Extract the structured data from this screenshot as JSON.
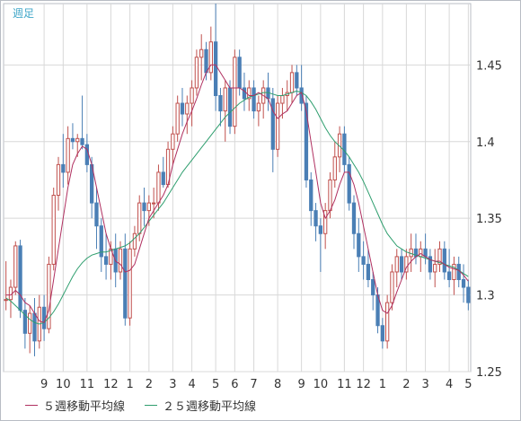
{
  "period_label": "週足",
  "legend": {
    "ma5": "５週移動平均線",
    "ma25": "２５週移動平均線"
  },
  "colors": {
    "up": "#c0504d",
    "down": "#4a7fb5",
    "ma5": "#b03060",
    "ma25": "#2e9e6e",
    "grid": "#d8d8d8",
    "border": "#b8bcc4"
  },
  "chart_data": {
    "type": "candlestick",
    "ylim": [
      1.25,
      1.49
    ],
    "y_ticks": [
      1.25,
      1.3,
      1.35,
      1.4,
      1.45
    ],
    "x_ticks": [
      {
        "i": 8,
        "label": "9"
      },
      {
        "i": 12,
        "label": "10"
      },
      {
        "i": 17,
        "label": "11"
      },
      {
        "i": 22,
        "label": "12"
      },
      {
        "i": 26,
        "label": "1"
      },
      {
        "i": 30,
        "label": "2"
      },
      {
        "i": 35,
        "label": "3"
      },
      {
        "i": 39,
        "label": "4"
      },
      {
        "i": 44,
        "label": "5"
      },
      {
        "i": 48,
        "label": "6"
      },
      {
        "i": 52,
        "label": "7"
      },
      {
        "i": 57,
        "label": "8"
      },
      {
        "i": 62,
        "label": "9"
      },
      {
        "i": 66,
        "label": "10"
      },
      {
        "i": 71,
        "label": "11"
      },
      {
        "i": 75,
        "label": "12"
      },
      {
        "i": 79,
        "label": "1"
      },
      {
        "i": 84,
        "label": "2"
      },
      {
        "i": 88,
        "label": "3"
      },
      {
        "i": 93,
        "label": "4"
      },
      {
        "i": 97,
        "label": "5"
      }
    ],
    "candles": [
      [
        1.297,
        1.322,
        1.29,
        1.297
      ],
      [
        1.297,
        1.31,
        1.285,
        1.305
      ],
      [
        1.305,
        1.335,
        1.3,
        1.332
      ],
      [
        1.332,
        1.336,
        1.285,
        1.29
      ],
      [
        1.29,
        1.298,
        1.265,
        1.275
      ],
      [
        1.275,
        1.293,
        1.262,
        1.288
      ],
      [
        1.288,
        1.298,
        1.26,
        1.27
      ],
      [
        1.27,
        1.3,
        1.265,
        1.292
      ],
      [
        1.292,
        1.3,
        1.27,
        1.278
      ],
      [
        1.278,
        1.325,
        1.275,
        1.32
      ],
      [
        1.32,
        1.37,
        1.316,
        1.365
      ],
      [
        1.365,
        1.39,
        1.355,
        1.385
      ],
      [
        1.385,
        1.405,
        1.37,
        1.38
      ],
      [
        1.38,
        1.41,
        1.372,
        1.402
      ],
      [
        1.402,
        1.412,
        1.395,
        1.4
      ],
      [
        1.4,
        1.405,
        1.39,
        1.402
      ],
      [
        1.402,
        1.43,
        1.395,
        1.398
      ],
      [
        1.398,
        1.405,
        1.38,
        1.385
      ],
      [
        1.385,
        1.39,
        1.35,
        1.36
      ],
      [
        1.36,
        1.37,
        1.33,
        1.345
      ],
      [
        1.345,
        1.35,
        1.315,
        1.325
      ],
      [
        1.325,
        1.34,
        1.31,
        1.32
      ],
      [
        1.32,
        1.335,
        1.31,
        1.33
      ],
      [
        1.33,
        1.34,
        1.305,
        1.315
      ],
      [
        1.315,
        1.335,
        1.31,
        1.33
      ],
      [
        1.33,
        1.34,
        1.28,
        1.285
      ],
      [
        1.285,
        1.335,
        1.28,
        1.33
      ],
      [
        1.33,
        1.345,
        1.325,
        1.34
      ],
      [
        1.34,
        1.365,
        1.335,
        1.36
      ],
      [
        1.36,
        1.37,
        1.345,
        1.355
      ],
      [
        1.355,
        1.365,
        1.345,
        1.36
      ],
      [
        1.36,
        1.37,
        1.35,
        1.36
      ],
      [
        1.36,
        1.385,
        1.355,
        1.38
      ],
      [
        1.38,
        1.39,
        1.37,
        1.372
      ],
      [
        1.372,
        1.4,
        1.37,
        1.395
      ],
      [
        1.395,
        1.41,
        1.385,
        1.405
      ],
      [
        1.405,
        1.43,
        1.4,
        1.425
      ],
      [
        1.425,
        1.435,
        1.41,
        1.418
      ],
      [
        1.418,
        1.43,
        1.405,
        1.425
      ],
      [
        1.425,
        1.44,
        1.41,
        1.435
      ],
      [
        1.435,
        1.46,
        1.43,
        1.455
      ],
      [
        1.455,
        1.47,
        1.44,
        1.46
      ],
      [
        1.46,
        1.465,
        1.44,
        1.445
      ],
      [
        1.445,
        1.475,
        1.44,
        1.465
      ],
      [
        1.465,
        1.49,
        1.42,
        1.43
      ],
      [
        1.43,
        1.435,
        1.41,
        1.42
      ],
      [
        1.42,
        1.44,
        1.4,
        1.435
      ],
      [
        1.435,
        1.44,
        1.405,
        1.41
      ],
      [
        1.41,
        1.46,
        1.405,
        1.455
      ],
      [
        1.455,
        1.46,
        1.43,
        1.435
      ],
      [
        1.435,
        1.445,
        1.42,
        1.428
      ],
      [
        1.428,
        1.44,
        1.42,
        1.435
      ],
      [
        1.435,
        1.44,
        1.415,
        1.42
      ],
      [
        1.42,
        1.43,
        1.41,
        1.425
      ],
      [
        1.425,
        1.44,
        1.415,
        1.435
      ],
      [
        1.435,
        1.445,
        1.42,
        1.428
      ],
      [
        1.428,
        1.435,
        1.38,
        1.395
      ],
      [
        1.395,
        1.43,
        1.39,
        1.425
      ],
      [
        1.425,
        1.435,
        1.415,
        1.43
      ],
      [
        1.43,
        1.44,
        1.42,
        1.432
      ],
      [
        1.432,
        1.45,
        1.425,
        1.445
      ],
      [
        1.445,
        1.45,
        1.43,
        1.435
      ],
      [
        1.435,
        1.45,
        1.42,
        1.425
      ],
      [
        1.425,
        1.43,
        1.37,
        1.375
      ],
      [
        1.375,
        1.38,
        1.345,
        1.355
      ],
      [
        1.355,
        1.36,
        1.335,
        1.345
      ],
      [
        1.345,
        1.35,
        1.315,
        1.34
      ],
      [
        1.34,
        1.36,
        1.33,
        1.355
      ],
      [
        1.355,
        1.38,
        1.35,
        1.375
      ],
      [
        1.375,
        1.4,
        1.37,
        1.39
      ],
      [
        1.39,
        1.41,
        1.38,
        1.405
      ],
      [
        1.405,
        1.41,
        1.38,
        1.385
      ],
      [
        1.385,
        1.39,
        1.355,
        1.36
      ],
      [
        1.36,
        1.365,
        1.33,
        1.34
      ],
      [
        1.34,
        1.35,
        1.315,
        1.325
      ],
      [
        1.325,
        1.335,
        1.31,
        1.32
      ],
      [
        1.32,
        1.33,
        1.305,
        1.31
      ],
      [
        1.31,
        1.315,
        1.29,
        1.3
      ],
      [
        1.3,
        1.305,
        1.275,
        1.28
      ],
      [
        1.28,
        1.285,
        1.265,
        1.27
      ],
      [
        1.27,
        1.3,
        1.265,
        1.295
      ],
      [
        1.295,
        1.32,
        1.29,
        1.315
      ],
      [
        1.315,
        1.33,
        1.305,
        1.325
      ],
      [
        1.325,
        1.33,
        1.31,
        1.315
      ],
      [
        1.315,
        1.33,
        1.31,
        1.325
      ],
      [
        1.325,
        1.34,
        1.315,
        1.33
      ],
      [
        1.33,
        1.34,
        1.32,
        1.325
      ],
      [
        1.325,
        1.335,
        1.315,
        1.33
      ],
      [
        1.33,
        1.34,
        1.32,
        1.325
      ],
      [
        1.325,
        1.33,
        1.31,
        1.315
      ],
      [
        1.315,
        1.33,
        1.305,
        1.32
      ],
      [
        1.32,
        1.335,
        1.315,
        1.33
      ],
      [
        1.33,
        1.335,
        1.31,
        1.315
      ],
      [
        1.315,
        1.33,
        1.305,
        1.31
      ],
      [
        1.31,
        1.325,
        1.3,
        1.32
      ],
      [
        1.32,
        1.325,
        1.305,
        1.31
      ],
      [
        1.31,
        1.32,
        1.295,
        1.305
      ],
      [
        1.305,
        1.31,
        1.29,
        1.295
      ]
    ],
    "ma5": [
      1.3,
      1.3,
      1.303,
      1.3,
      1.295,
      1.293,
      1.288,
      1.283,
      1.282,
      1.29,
      1.31,
      1.33,
      1.35,
      1.37,
      1.385,
      1.392,
      1.397,
      1.395,
      1.385,
      1.37,
      1.355,
      1.34,
      1.33,
      1.322,
      1.32,
      1.315,
      1.316,
      1.32,
      1.33,
      1.34,
      1.35,
      1.355,
      1.36,
      1.365,
      1.372,
      1.385,
      1.395,
      1.405,
      1.413,
      1.42,
      1.428,
      1.437,
      1.445,
      1.45,
      1.45,
      1.445,
      1.44,
      1.435,
      1.435,
      1.435,
      1.433,
      1.43,
      1.43,
      1.432,
      1.43,
      1.428,
      1.42,
      1.415,
      1.418,
      1.42,
      1.425,
      1.43,
      1.432,
      1.42,
      1.4,
      1.38,
      1.36,
      1.35,
      1.355,
      1.362,
      1.372,
      1.38,
      1.38,
      1.372,
      1.36,
      1.345,
      1.33,
      1.315,
      1.3,
      1.29,
      1.288,
      1.293,
      1.302,
      1.31,
      1.318,
      1.322,
      1.325,
      1.327,
      1.325,
      1.323,
      1.322,
      1.322,
      1.32,
      1.318,
      1.317,
      1.316,
      1.313,
      1.309
    ],
    "ma25": [
      1.298,
      1.296,
      1.293,
      1.29,
      1.287,
      1.284,
      1.282,
      1.281,
      1.282,
      1.285,
      1.289,
      1.294,
      1.3,
      1.306,
      1.312,
      1.317,
      1.321,
      1.324,
      1.326,
      1.327,
      1.328,
      1.328,
      1.329,
      1.33,
      1.331,
      1.332,
      1.334,
      1.337,
      1.34,
      1.344,
      1.348,
      1.352,
      1.356,
      1.36,
      1.365,
      1.37,
      1.375,
      1.38,
      1.384,
      1.388,
      1.392,
      1.396,
      1.4,
      1.404,
      1.408,
      1.412,
      1.416,
      1.419,
      1.422,
      1.425,
      1.427,
      1.429,
      1.43,
      1.431,
      1.432,
      1.432,
      1.431,
      1.43,
      1.43,
      1.431,
      1.432,
      1.433,
      1.432,
      1.43,
      1.426,
      1.421,
      1.415,
      1.409,
      1.404,
      1.4,
      1.397,
      1.394,
      1.39,
      1.385,
      1.38,
      1.374,
      1.367,
      1.36,
      1.353,
      1.346,
      1.34,
      1.336,
      1.332,
      1.33,
      1.328,
      1.327,
      1.326,
      1.325,
      1.324,
      1.323,
      1.322,
      1.321,
      1.32,
      1.319,
      1.318,
      1.316,
      1.314,
      1.312
    ]
  }
}
